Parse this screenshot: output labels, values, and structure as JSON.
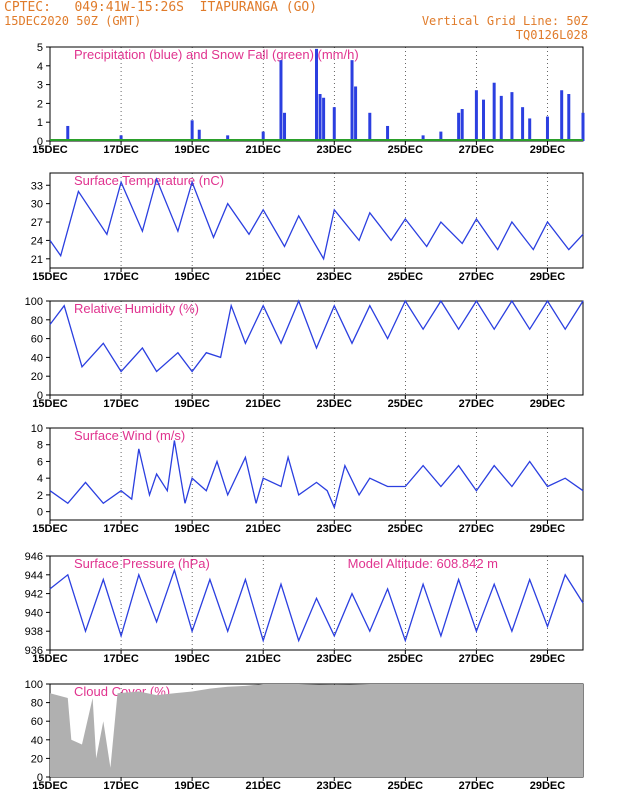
{
  "header": {
    "line1_left": "CPTEC:   049:41W-15:26S  ITAPURANGA (GO)",
    "line2_left": "15DEC2020 50Z (GMT)",
    "line2_right": "Vertical Grid Line: 50Z",
    "line3_right": "TQ0126L028"
  },
  "colors": {
    "header": "#e07b2a",
    "title": "#e0338f",
    "series": "#2b3fe0",
    "snow": "#2aa02a",
    "cloud": "#b0b0b0",
    "arrow": "#000000"
  },
  "x_ticks": [
    "15DEC",
    "17DEC",
    "19DEC",
    "21DEC",
    "23DEC",
    "25DEC",
    "27DEC",
    "29DEC"
  ],
  "chart_data": [
    {
      "id": "precip",
      "type": "bar",
      "title": "Precipitation (blue) and Snow Fall (green) (mm/h)",
      "ylim": [
        0,
        5
      ],
      "yticks": [
        "0",
        "1",
        "2",
        "3",
        "4",
        "5"
      ],
      "series": [
        {
          "name": "Precipitation",
          "points": [
            [
              15.5,
              0.8
            ],
            [
              17.0,
              0.3
            ],
            [
              19.0,
              1.1
            ],
            [
              19.2,
              0.6
            ],
            [
              20.0,
              0.3
            ],
            [
              21.0,
              0.5
            ],
            [
              21.5,
              4.3
            ],
            [
              21.6,
              1.5
            ],
            [
              22.5,
              4.9
            ],
            [
              22.6,
              2.5
            ],
            [
              22.7,
              2.3
            ],
            [
              23.0,
              1.8
            ],
            [
              23.5,
              4.3
            ],
            [
              23.6,
              2.9
            ],
            [
              24.0,
              1.5
            ],
            [
              24.5,
              0.8
            ],
            [
              25.5,
              0.3
            ],
            [
              26.0,
              0.5
            ],
            [
              26.5,
              1.5
            ],
            [
              26.6,
              1.7
            ],
            [
              27.0,
              2.7
            ],
            [
              27.2,
              2.2
            ],
            [
              27.5,
              3.1
            ],
            [
              27.7,
              2.4
            ],
            [
              28.0,
              2.6
            ],
            [
              28.3,
              1.8
            ],
            [
              28.5,
              1.2
            ],
            [
              29.0,
              1.3
            ],
            [
              29.4,
              2.7
            ],
            [
              29.6,
              2.5
            ],
            [
              30.0,
              1.5
            ]
          ]
        },
        {
          "name": "Snow Fall",
          "points": [
            [
              15.0,
              0.0
            ],
            [
              30.0,
              0.0
            ]
          ]
        }
      ]
    },
    {
      "id": "temp",
      "type": "line",
      "title": "Surface Temperature (nC)",
      "ylim": [
        19.5,
        35
      ],
      "yticks": [
        "21",
        "24",
        "27",
        "30",
        "33"
      ],
      "series": [
        {
          "name": "",
          "points": [
            [
              15.0,
              24.0
            ],
            [
              15.3,
              21.5
            ],
            [
              15.8,
              32.0
            ],
            [
              16.6,
              25.0
            ],
            [
              17.0,
              33.5
            ],
            [
              17.6,
              25.5
            ],
            [
              18.0,
              34.0
            ],
            [
              18.6,
              25.5
            ],
            [
              19.0,
              33.5
            ],
            [
              19.6,
              24.5
            ],
            [
              20.0,
              30.0
            ],
            [
              20.6,
              25.0
            ],
            [
              21.0,
              29.0
            ],
            [
              21.6,
              23.0
            ],
            [
              22.0,
              28.0
            ],
            [
              22.7,
              21.0
            ],
            [
              23.0,
              29.0
            ],
            [
              23.7,
              24.0
            ],
            [
              24.0,
              28.5
            ],
            [
              24.6,
              24.0
            ],
            [
              25.0,
              27.5
            ],
            [
              25.6,
              23.0
            ],
            [
              26.0,
              27.0
            ],
            [
              26.6,
              23.5
            ],
            [
              27.0,
              27.5
            ],
            [
              27.6,
              22.5
            ],
            [
              28.0,
              27.0
            ],
            [
              28.6,
              22.5
            ],
            [
              29.0,
              27.0
            ],
            [
              29.6,
              22.5
            ],
            [
              30.0,
              25.0
            ]
          ]
        }
      ]
    },
    {
      "id": "rh",
      "type": "line",
      "title": "Relative Humidity (%)",
      "ylim": [
        0,
        100
      ],
      "yticks": [
        "0",
        "20",
        "40",
        "60",
        "80",
        "100"
      ],
      "series": [
        {
          "name": "",
          "points": [
            [
              15.0,
              75
            ],
            [
              15.4,
              95
            ],
            [
              15.9,
              30
            ],
            [
              16.5,
              55
            ],
            [
              17.0,
              25
            ],
            [
              17.6,
              50
            ],
            [
              18.0,
              25
            ],
            [
              18.6,
              45
            ],
            [
              19.0,
              25
            ],
            [
              19.4,
              45
            ],
            [
              19.8,
              40
            ],
            [
              20.1,
              95
            ],
            [
              20.5,
              55
            ],
            [
              21.0,
              95
            ],
            [
              21.5,
              55
            ],
            [
              22.0,
              100
            ],
            [
              22.5,
              50
            ],
            [
              23.0,
              95
            ],
            [
              23.5,
              55
            ],
            [
              24.0,
              95
            ],
            [
              24.5,
              60
            ],
            [
              25.0,
              100
            ],
            [
              25.5,
              70
            ],
            [
              26.0,
              100
            ],
            [
              26.5,
              70
            ],
            [
              27.0,
              100
            ],
            [
              27.5,
              70
            ],
            [
              28.0,
              100
            ],
            [
              28.5,
              70
            ],
            [
              29.0,
              100
            ],
            [
              29.5,
              70
            ],
            [
              30.0,
              100
            ]
          ]
        }
      ]
    },
    {
      "id": "wind",
      "type": "line",
      "title": "Surface Wind (m/s)",
      "ylim": [
        -1,
        10
      ],
      "yticks": [
        "0",
        "2",
        "4",
        "6",
        "8",
        "10"
      ],
      "series": [
        {
          "name": "",
          "points": [
            [
              15.0,
              2.5
            ],
            [
              15.5,
              1.0
            ],
            [
              16.0,
              3.5
            ],
            [
              16.5,
              1.0
            ],
            [
              17.0,
              2.5
            ],
            [
              17.3,
              1.5
            ],
            [
              17.5,
              7.5
            ],
            [
              17.8,
              2.0
            ],
            [
              18.0,
              4.5
            ],
            [
              18.3,
              2.5
            ],
            [
              18.5,
              8.5
            ],
            [
              18.8,
              1.0
            ],
            [
              19.0,
              4.0
            ],
            [
              19.4,
              2.5
            ],
            [
              19.7,
              6.0
            ],
            [
              20.0,
              2.0
            ],
            [
              20.5,
              6.5
            ],
            [
              20.8,
              1.0
            ],
            [
              21.0,
              4.0
            ],
            [
              21.5,
              3.0
            ],
            [
              21.7,
              6.5
            ],
            [
              22.0,
              2.0
            ],
            [
              22.5,
              3.5
            ],
            [
              22.8,
              2.5
            ],
            [
              23.0,
              0.5
            ],
            [
              23.3,
              5.5
            ],
            [
              23.7,
              2.0
            ],
            [
              24.0,
              4.0
            ],
            [
              24.5,
              3.0
            ],
            [
              25.0,
              3.0
            ],
            [
              25.5,
              5.5
            ],
            [
              26.0,
              3.0
            ],
            [
              26.5,
              5.5
            ],
            [
              27.0,
              2.5
            ],
            [
              27.5,
              5.5
            ],
            [
              28.0,
              3.0
            ],
            [
              28.5,
              6.0
            ],
            [
              29.0,
              3.0
            ],
            [
              29.5,
              4.0
            ],
            [
              30.0,
              2.5
            ]
          ]
        }
      ]
    },
    {
      "id": "pres",
      "type": "line",
      "title": "Surface Pressure (hPa)",
      "title_right": "Model Altitude: 608.842 m",
      "ylim": [
        936,
        946
      ],
      "yticks": [
        "936",
        "938",
        "940",
        "942",
        "944",
        "946"
      ],
      "series": [
        {
          "name": "",
          "points": [
            [
              15.0,
              942.5
            ],
            [
              15.5,
              944.0
            ],
            [
              16.0,
              938.0
            ],
            [
              16.5,
              943.5
            ],
            [
              17.0,
              937.5
            ],
            [
              17.5,
              944.0
            ],
            [
              18.0,
              939.0
            ],
            [
              18.5,
              944.5
            ],
            [
              19.0,
              938.0
            ],
            [
              19.5,
              943.5
            ],
            [
              20.0,
              938.0
            ],
            [
              20.5,
              943.5
            ],
            [
              21.0,
              937.0
            ],
            [
              21.5,
              943.0
            ],
            [
              22.0,
              937.0
            ],
            [
              22.5,
              941.5
            ],
            [
              23.0,
              937.5
            ],
            [
              23.5,
              942.0
            ],
            [
              24.0,
              938.0
            ],
            [
              24.5,
              942.5
            ],
            [
              25.0,
              937.0
            ],
            [
              25.5,
              943.0
            ],
            [
              26.0,
              937.5
            ],
            [
              26.5,
              943.5
            ],
            [
              27.0,
              938.0
            ],
            [
              27.5,
              943.0
            ],
            [
              28.0,
              938.0
            ],
            [
              28.5,
              943.5
            ],
            [
              29.0,
              938.5
            ],
            [
              29.5,
              944.0
            ],
            [
              30.0,
              941.0
            ]
          ]
        }
      ]
    },
    {
      "id": "cloud",
      "type": "area",
      "title": "Cloud Cover (%)",
      "ylim": [
        0,
        100
      ],
      "yticks": [
        "0",
        "20",
        "40",
        "60",
        "80",
        "100"
      ],
      "series": [
        {
          "name": "",
          "points": [
            [
              15.0,
              90
            ],
            [
              15.5,
              85
            ],
            [
              15.6,
              40
            ],
            [
              15.9,
              35
            ],
            [
              16.2,
              85
            ],
            [
              16.3,
              20
            ],
            [
              16.5,
              60
            ],
            [
              16.7,
              10
            ],
            [
              16.9,
              90
            ],
            [
              17.5,
              92
            ],
            [
              18.0,
              88
            ],
            [
              18.5,
              90
            ],
            [
              19.0,
              92
            ],
            [
              19.5,
              95
            ],
            [
              20.0,
              97
            ],
            [
              20.5,
              98
            ],
            [
              21.0,
              100
            ],
            [
              22.0,
              100
            ],
            [
              23.0,
              99
            ],
            [
              24.0,
              100
            ],
            [
              25.0,
              100
            ],
            [
              26.0,
              100
            ],
            [
              27.0,
              100
            ],
            [
              28.0,
              100
            ],
            [
              29.0,
              100
            ],
            [
              30.0,
              100
            ]
          ]
        }
      ]
    }
  ]
}
